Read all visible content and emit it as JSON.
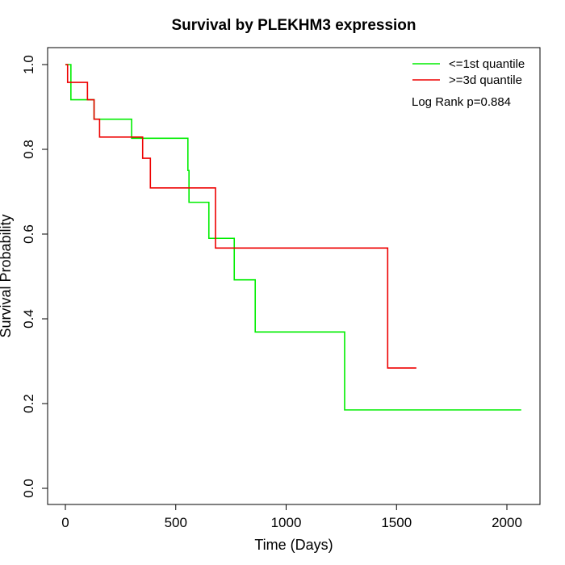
{
  "chart_data": {
    "type": "line",
    "step": true,
    "title": "Survival by PLEKHM3 expression",
    "xlabel": "Time (Days)",
    "ylabel": "Survival Probability",
    "xlim": [
      0,
      2070
    ],
    "ylim": [
      0,
      1
    ],
    "xticks": [
      0,
      500,
      1000,
      1500,
      2000
    ],
    "yticks": [
      0.0,
      0.2,
      0.4,
      0.6,
      0.8,
      1.0
    ],
    "xtick_labels": [
      "0",
      "500",
      "1000",
      "1500",
      "2000"
    ],
    "ytick_labels": [
      "0.0",
      "0.2",
      "0.4",
      "0.6",
      "0.8",
      "1.0"
    ],
    "grid": false,
    "legend_position": "top-right",
    "annotation": "Log Rank p=0.884",
    "series": [
      {
        "name": "<=1st quantile",
        "color": "#00ee00",
        "x": [
          0,
          25,
          130,
          300,
          555,
          560,
          650,
          765,
          860,
          1265,
          2065
        ],
        "y": [
          1.0,
          0.917,
          0.871,
          0.826,
          0.75,
          0.675,
          0.59,
          0.492,
          0.369,
          0.185,
          0.185
        ]
      },
      {
        "name": ">=3d quantile",
        "color": "#ee0000",
        "x": [
          0,
          10,
          100,
          130,
          155,
          350,
          385,
          680,
          1460,
          1590
        ],
        "y": [
          1.0,
          0.958,
          0.917,
          0.871,
          0.829,
          0.779,
          0.709,
          0.567,
          0.284,
          0.284
        ]
      }
    ]
  }
}
